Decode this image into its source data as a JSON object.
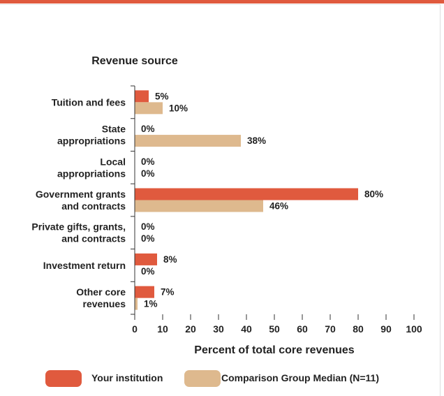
{
  "chart_data": {
    "type": "bar",
    "orientation": "horizontal",
    "title": "Revenue source",
    "xlabel": "Percent of total core revenues",
    "ylabel": "",
    "xlim": [
      0,
      100
    ],
    "xticks": [
      0,
      10,
      20,
      30,
      40,
      50,
      60,
      70,
      80,
      90,
      100
    ],
    "grid": false,
    "legend_position": "bottom",
    "categories": [
      [
        "Tuition and fees"
      ],
      [
        "State",
        "appropriations"
      ],
      [
        "Local",
        "appropriations"
      ],
      [
        "Government grants",
        "and contracts"
      ],
      [
        "Private gifts, grants,",
        "and contracts"
      ],
      [
        "Investment return"
      ],
      [
        "Other core",
        "revenues"
      ]
    ],
    "series": [
      {
        "name": "Your institution",
        "color": "#e05a3e",
        "values": [
          5,
          0,
          0,
          80,
          0,
          8,
          7
        ],
        "labels": [
          "5%",
          "0%",
          "0%",
          "80%",
          "0%",
          "8%",
          "7%"
        ]
      },
      {
        "name": "Comparison Group Median (N=11)",
        "color": "#deb98e",
        "values": [
          10,
          38,
          0,
          46,
          0,
          0,
          1
        ],
        "labels": [
          "10%",
          "38%",
          "0%",
          "46%",
          "0%",
          "0%",
          "1%"
        ]
      }
    ]
  }
}
